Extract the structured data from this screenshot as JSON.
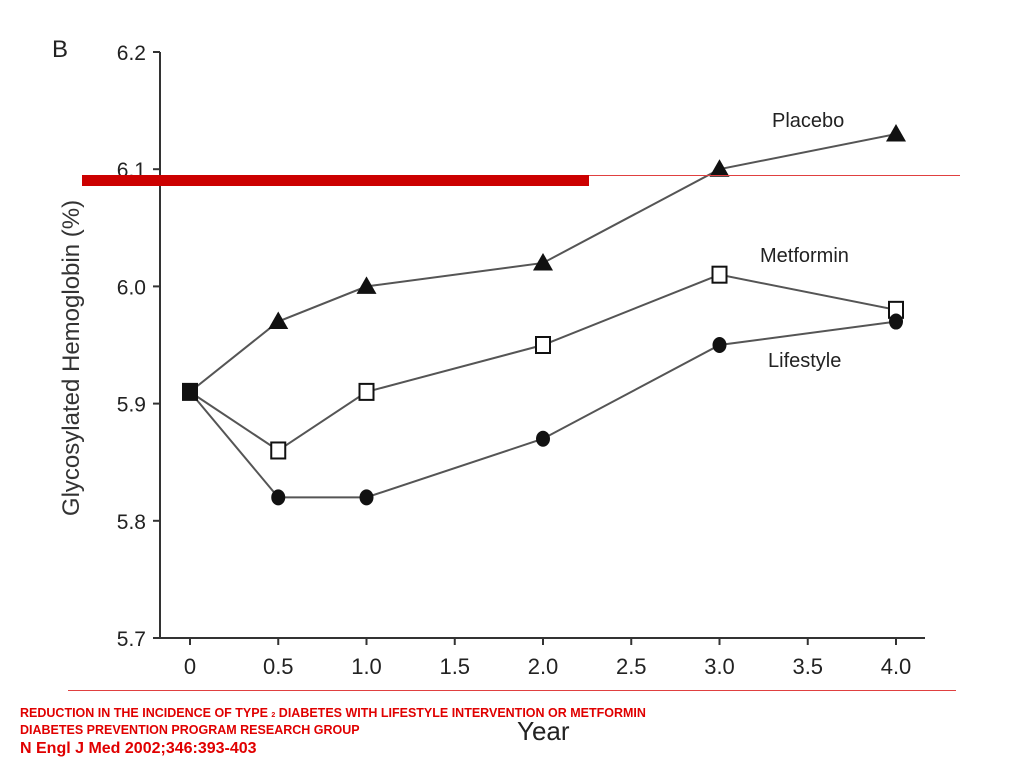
{
  "chart_data": {
    "type": "line",
    "panel_label": "B",
    "xlabel": "Year",
    "ylabel": "Glycosylated Hemoglobin (%)",
    "x_ticks": [
      "0",
      "0.5",
      "1.0",
      "1.5",
      "2.0",
      "2.5",
      "3.0",
      "3.5",
      "4.0"
    ],
    "y_ticks": [
      "5.7",
      "5.8",
      "5.9",
      "6.0",
      "6.1",
      "6.2"
    ],
    "xlim": [
      0,
      4
    ],
    "ylim": [
      5.7,
      6.2
    ],
    "grid": false,
    "legend": "inline labels",
    "series": [
      {
        "name": "Placebo",
        "marker": "filled-triangle",
        "x": [
          0,
          0.5,
          1.0,
          2.0,
          3.0,
          4.0
        ],
        "y": [
          5.91,
          5.97,
          6.0,
          6.02,
          6.1,
          6.13
        ]
      },
      {
        "name": "Metformin",
        "marker": "open-square",
        "x": [
          0,
          0.5,
          1.0,
          2.0,
          3.0,
          4.0
        ],
        "y": [
          5.91,
          5.86,
          5.91,
          5.95,
          6.01,
          5.98
        ]
      },
      {
        "name": "Lifestyle",
        "marker": "filled-circle",
        "x": [
          0,
          0.5,
          1.0,
          2.0,
          3.0,
          4.0
        ],
        "y": [
          5.91,
          5.82,
          5.82,
          5.87,
          5.95,
          5.97
        ]
      }
    ],
    "baseline_marker": "filled-square"
  },
  "caption": {
    "line1_before": "REDUCTION IN THE INCIDENCE OF TYPE ",
    "line1_sub": "2",
    "line1_after": " DIABETES WITH LIFESTYLE INTERVENTION OR METFORMIN",
    "line2": "DIABETES PREVENTION PROGRAM RESEARCH GROUP",
    "line3": "N Engl J Med 2002;346:393-403"
  },
  "colors": {
    "caption": "#e00000",
    "highlight_bar": "#cc0000",
    "line": "#555555",
    "marker": "#111111"
  }
}
